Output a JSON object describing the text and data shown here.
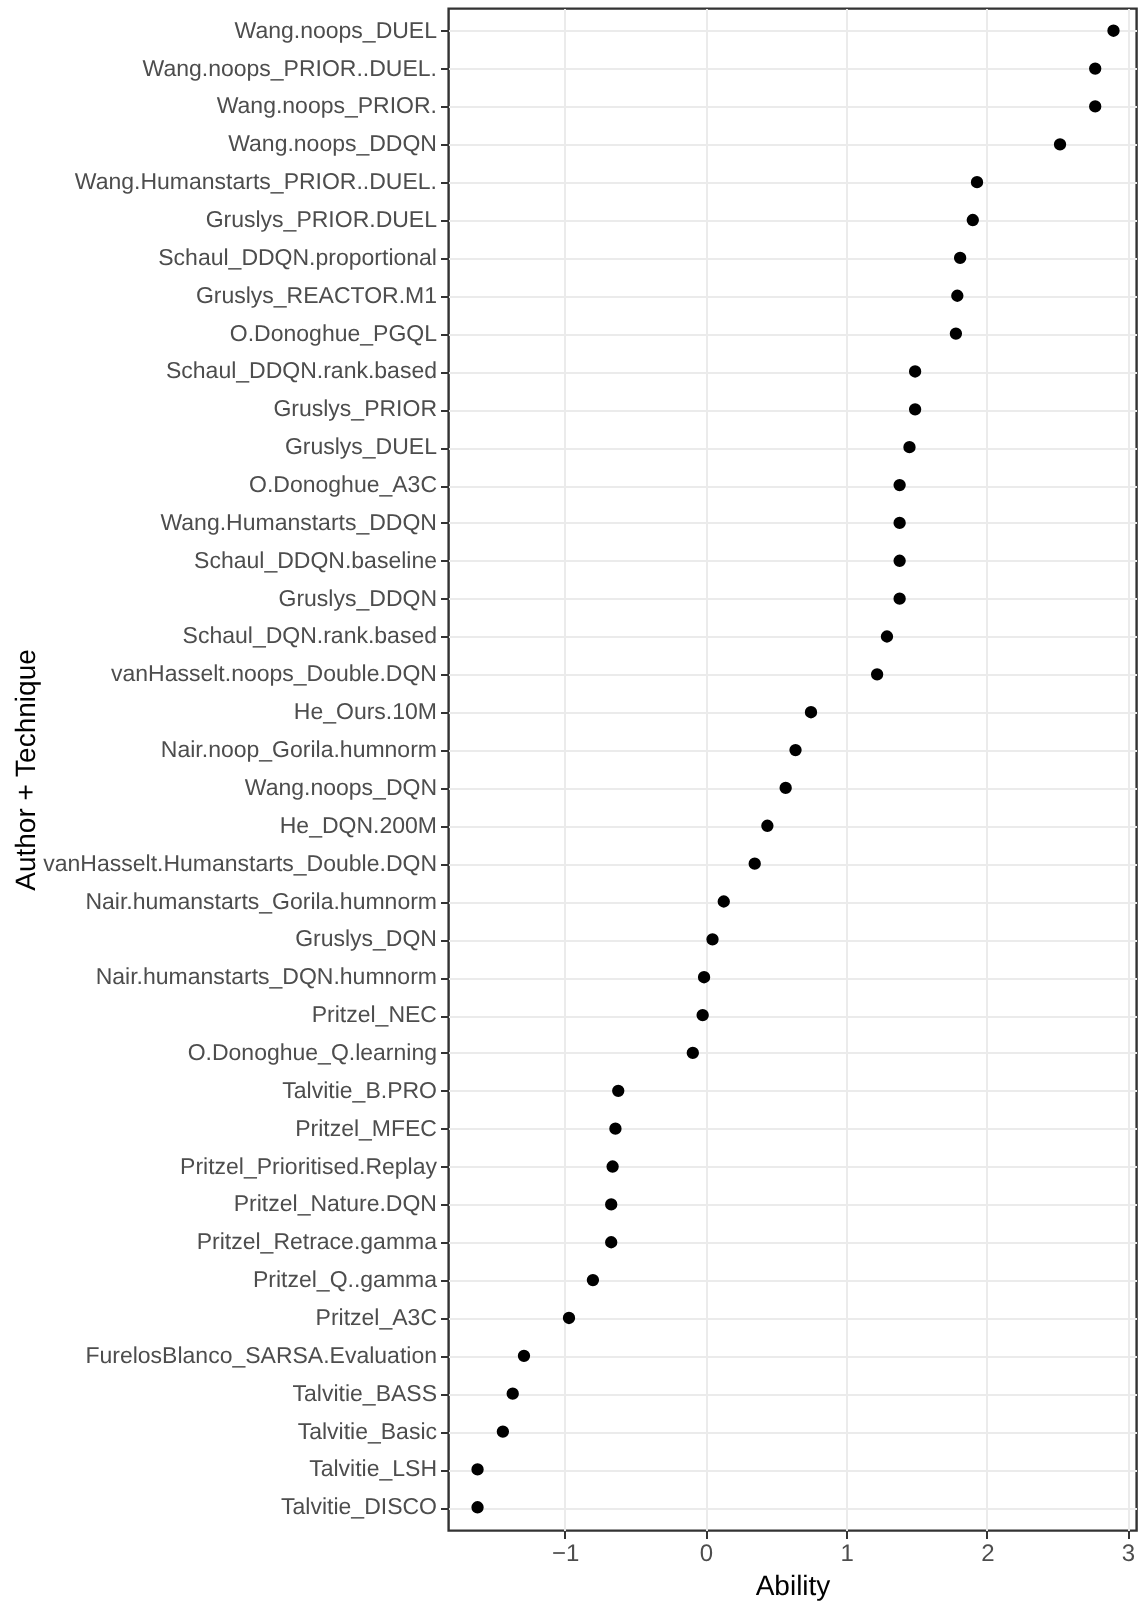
{
  "chart_data": {
    "type": "scatter",
    "orientation": "horizontal",
    "xlabel": "Ability",
    "ylabel": "Author + Technique",
    "categories": [
      "Wang.noops_DUEL",
      "Wang.noops_PRIOR..DUEL.",
      "Wang.noops_PRIOR.",
      "Wang.noops_DDQN",
      "Wang.Humanstarts_PRIOR..DUEL.",
      "Gruslys_PRIOR.DUEL",
      "Schaul_DDQN.proportional",
      "Gruslys_REACTOR.M1",
      "O.Donoghue_PGQL",
      "Schaul_DDQN.rank.based",
      "Gruslys_PRIOR",
      "Gruslys_DUEL",
      "O.Donoghue_A3C",
      "Wang.Humanstarts_DDQN",
      "Schaul_DDQN.baseline",
      "Gruslys_DDQN",
      "Schaul_DQN.rank.based",
      "vanHasselt.noops_Double.DQN",
      "He_Ours.10M",
      "Nair.noop_Gorila.humnorm",
      "Wang.noops_DQN",
      "He_DQN.200M",
      "vanHasselt.Humanstarts_Double.DQN",
      "Nair.humanstarts_Gorila.humnorm",
      "Gruslys_DQN",
      "Nair.humanstarts_DQN.humnorm",
      "Pritzel_NEC",
      "O.Donoghue_Q.learning",
      "Talvitie_B.PRO",
      "Pritzel_MFEC",
      "Pritzel_Prioritised.Replay",
      "Pritzel_Nature.DQN",
      "Pritzel_Retrace.gamma",
      "Pritzel_Q..gamma",
      "Pritzel_A3C",
      "FurelosBlanco_SARSA.Evaluation",
      "Talvitie_BASS",
      "Talvitie_Basic",
      "Talvitie_LSH",
      "Talvitie_DISCO"
    ],
    "series": [
      {
        "color": "#000000",
        "values": [
          2.9,
          2.77,
          2.77,
          2.52,
          1.93,
          1.9,
          1.81,
          1.79,
          1.78,
          1.49,
          1.49,
          1.45,
          1.38,
          1.38,
          1.38,
          1.38,
          1.29,
          1.22,
          0.75,
          0.64,
          0.57,
          0.44,
          0.35,
          0.13,
          0.05,
          -0.01,
          -0.02,
          -0.09,
          -0.62,
          -0.64,
          -0.66,
          -0.67,
          -0.67,
          -0.8,
          -0.97,
          -1.29,
          -1.37,
          -1.44,
          -1.62,
          -1.62
        ]
      }
    ],
    "xlim": [
      -1.83,
      3.06
    ],
    "xticks": [
      -1,
      0,
      1,
      2,
      3
    ],
    "grid": true,
    "marker": "circle",
    "legend": false
  }
}
